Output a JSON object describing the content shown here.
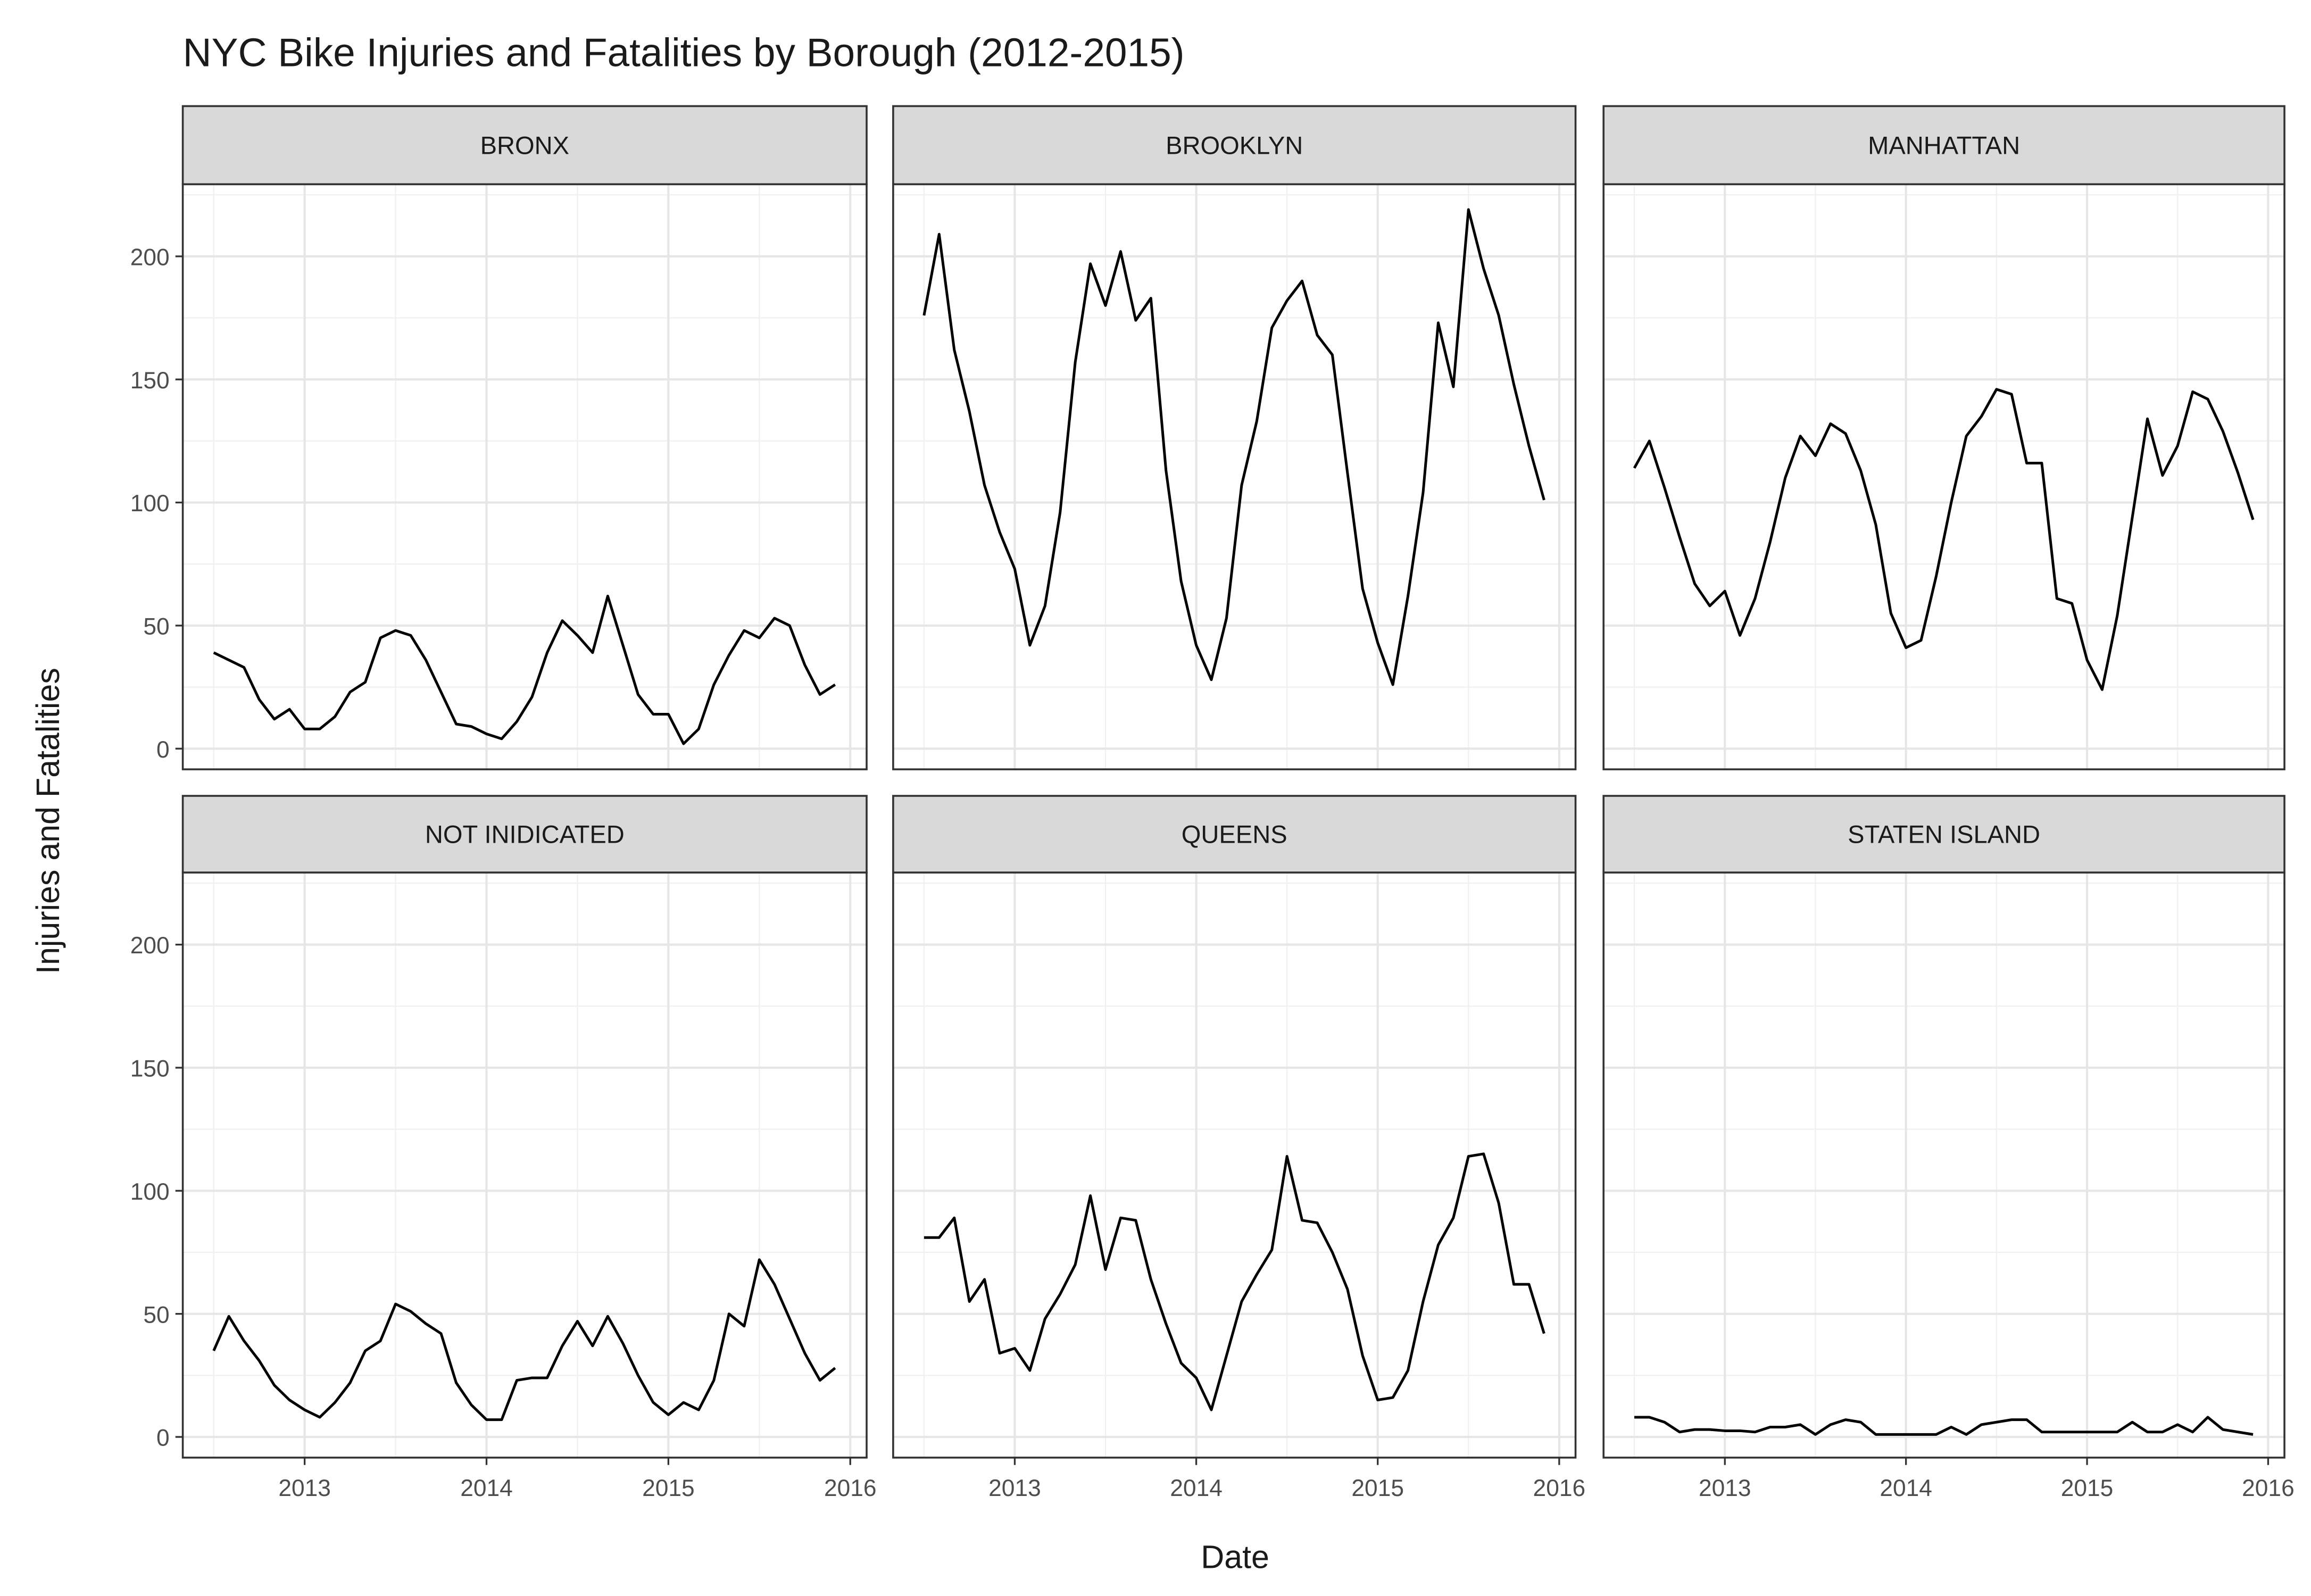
{
  "title": "NYC Bike Injuries and Fatalities by Borough (2012-2015)",
  "x_label": "Date",
  "y_label": "Injuries and Fatalities",
  "chart_data": [
    {
      "type": "line",
      "title": "BRONX",
      "color": "#000000",
      "grid": true,
      "x": [
        "2012-07",
        "2012-08",
        "2012-09",
        "2012-10",
        "2012-11",
        "2012-12",
        "2013-01",
        "2013-02",
        "2013-03",
        "2013-04",
        "2013-05",
        "2013-06",
        "2013-07",
        "2013-08",
        "2013-09",
        "2013-10",
        "2013-11",
        "2013-12",
        "2014-01",
        "2014-02",
        "2014-03",
        "2014-04",
        "2014-05",
        "2014-06",
        "2014-07",
        "2014-08",
        "2014-09",
        "2014-10",
        "2014-11",
        "2014-12",
        "2015-01",
        "2015-02",
        "2015-03",
        "2015-04",
        "2015-05",
        "2015-06",
        "2015-07",
        "2015-08",
        "2015-09",
        "2015-10",
        "2015-11",
        "2015-12"
      ],
      "values": [
        39,
        36,
        33,
        20,
        12,
        16,
        8,
        8,
        13,
        23,
        27,
        45,
        48,
        46,
        36,
        23,
        10,
        9,
        6,
        4,
        11,
        21,
        39,
        52,
        46,
        39,
        62,
        42,
        22,
        14,
        14,
        2,
        8,
        26,
        38,
        48,
        45,
        53,
        50,
        34,
        22,
        26
      ],
      "xlim": [
        2012.33,
        2016.09
      ],
      "xticks": [
        2013,
        2014,
        2015,
        2016
      ],
      "ylim": [
        -8.4,
        229.3
      ],
      "yticks": [
        0,
        50,
        100,
        150,
        200
      ]
    },
    {
      "type": "line",
      "title": "BROOKLYN",
      "color": "#000000",
      "grid": true,
      "x": [
        "2012-07",
        "2012-08",
        "2012-09",
        "2012-10",
        "2012-11",
        "2012-12",
        "2013-01",
        "2013-02",
        "2013-03",
        "2013-04",
        "2013-05",
        "2013-06",
        "2013-07",
        "2013-08",
        "2013-09",
        "2013-10",
        "2013-11",
        "2013-12",
        "2014-01",
        "2014-02",
        "2014-03",
        "2014-04",
        "2014-05",
        "2014-06",
        "2014-07",
        "2014-08",
        "2014-09",
        "2014-10",
        "2014-11",
        "2014-12",
        "2015-01",
        "2015-02",
        "2015-03",
        "2015-04",
        "2015-05",
        "2015-06",
        "2015-07",
        "2015-08",
        "2015-09",
        "2015-10",
        "2015-11",
        "2015-12"
      ],
      "values": [
        176,
        209,
        162,
        137,
        107,
        88,
        73,
        42,
        58,
        96,
        157,
        197,
        180,
        202,
        174,
        183,
        113,
        68,
        42,
        28,
        53,
        107,
        133,
        171,
        182,
        190,
        168,
        160,
        112,
        65,
        43,
        26,
        62,
        104,
        173,
        147,
        219,
        195,
        176,
        148,
        123,
        101
      ],
      "xlim": [
        2012.33,
        2016.09
      ],
      "xticks": [
        2013,
        2014,
        2015,
        2016
      ],
      "ylim": [
        -8.4,
        229.3
      ],
      "yticks": [
        0,
        50,
        100,
        150,
        200
      ]
    },
    {
      "type": "line",
      "title": "MANHATTAN",
      "color": "#000000",
      "grid": true,
      "x": [
        "2012-07",
        "2012-08",
        "2012-09",
        "2012-10",
        "2012-11",
        "2012-12",
        "2013-01",
        "2013-02",
        "2013-03",
        "2013-04",
        "2013-05",
        "2013-06",
        "2013-07",
        "2013-08",
        "2013-09",
        "2013-10",
        "2013-11",
        "2013-12",
        "2014-01",
        "2014-02",
        "2014-03",
        "2014-04",
        "2014-05",
        "2014-06",
        "2014-07",
        "2014-08",
        "2014-09",
        "2014-10",
        "2014-11",
        "2014-12",
        "2015-01",
        "2015-02",
        "2015-03",
        "2015-04",
        "2015-05",
        "2015-06",
        "2015-07",
        "2015-08",
        "2015-09",
        "2015-10",
        "2015-11",
        "2015-12"
      ],
      "values": [
        114,
        125,
        106,
        86,
        67,
        58,
        64,
        46,
        61,
        84,
        110,
        127,
        119,
        132,
        128,
        113,
        91,
        55,
        41,
        44,
        70,
        100,
        127,
        135,
        146,
        144,
        116,
        116,
        61,
        59,
        36,
        24,
        54,
        94,
        134,
        111,
        123,
        145,
        142,
        129,
        112,
        93
      ],
      "xlim": [
        2012.33,
        2016.09
      ],
      "xticks": [
        2013,
        2014,
        2015,
        2016
      ],
      "ylim": [
        -8.4,
        229.3
      ],
      "yticks": [
        0,
        50,
        100,
        150,
        200
      ]
    },
    {
      "type": "line",
      "title": "NOT INIDICATED",
      "color": "#000000",
      "grid": true,
      "x": [
        "2012-07",
        "2012-08",
        "2012-09",
        "2012-10",
        "2012-11",
        "2012-12",
        "2013-01",
        "2013-02",
        "2013-03",
        "2013-04",
        "2013-05",
        "2013-06",
        "2013-07",
        "2013-08",
        "2013-09",
        "2013-10",
        "2013-11",
        "2013-12",
        "2014-01",
        "2014-02",
        "2014-03",
        "2014-04",
        "2014-05",
        "2014-06",
        "2014-07",
        "2014-08",
        "2014-09",
        "2014-10",
        "2014-11",
        "2014-12",
        "2015-01",
        "2015-02",
        "2015-03",
        "2015-04",
        "2015-05",
        "2015-06",
        "2015-07",
        "2015-08",
        "2015-09",
        "2015-10",
        "2015-11",
        "2015-12"
      ],
      "values": [
        35,
        49,
        39,
        31,
        21,
        15,
        11,
        8,
        14,
        22,
        35,
        39,
        54,
        51,
        46,
        42,
        22,
        13,
        7,
        7,
        23,
        24,
        24,
        37,
        47,
        37,
        49,
        38,
        25,
        14,
        9,
        14,
        11,
        23,
        50,
        45,
        72,
        62,
        48,
        34,
        23,
        28
      ],
      "xlim": [
        2012.33,
        2016.09
      ],
      "xticks": [
        2013,
        2014,
        2015,
        2016
      ],
      "ylim": [
        -8.4,
        229.3
      ],
      "yticks": [
        0,
        50,
        100,
        150,
        200
      ]
    },
    {
      "type": "line",
      "title": "QUEENS",
      "color": "#000000",
      "grid": true,
      "x": [
        "2012-07",
        "2012-08",
        "2012-09",
        "2012-10",
        "2012-11",
        "2012-12",
        "2013-01",
        "2013-02",
        "2013-03",
        "2013-04",
        "2013-05",
        "2013-06",
        "2013-07",
        "2013-08",
        "2013-09",
        "2013-10",
        "2013-11",
        "2013-12",
        "2014-01",
        "2014-02",
        "2014-03",
        "2014-04",
        "2014-05",
        "2014-06",
        "2014-07",
        "2014-08",
        "2014-09",
        "2014-10",
        "2014-11",
        "2014-12",
        "2015-01",
        "2015-02",
        "2015-03",
        "2015-04",
        "2015-05",
        "2015-06",
        "2015-07",
        "2015-08",
        "2015-09",
        "2015-10",
        "2015-11",
        "2015-12"
      ],
      "values": [
        81,
        81,
        89,
        55,
        64,
        34,
        36,
        27,
        48,
        58,
        70,
        98,
        68,
        89,
        88,
        64,
        46,
        30,
        24,
        11,
        33,
        55,
        66,
        76,
        114,
        88,
        87,
        75,
        60,
        33,
        15,
        16,
        27,
        55,
        78,
        89,
        114,
        115,
        95,
        62,
        62,
        42
      ],
      "xlim": [
        2012.33,
        2016.09
      ],
      "xticks": [
        2013,
        2014,
        2015,
        2016
      ],
      "ylim": [
        -8.4,
        229.3
      ],
      "yticks": [
        0,
        50,
        100,
        150,
        200
      ]
    },
    {
      "type": "line",
      "title": "STATEN ISLAND",
      "color": "#000000",
      "grid": true,
      "x": [
        "2012-07",
        "2012-08",
        "2012-09",
        "2012-10",
        "2012-11",
        "2012-12",
        "2013-01",
        "2013-02",
        "2013-03",
        "2013-04",
        "2013-05",
        "2013-06",
        "2013-07",
        "2013-08",
        "2013-09",
        "2013-10",
        "2013-11",
        "2013-12",
        "2014-01",
        "2014-02",
        "2014-03",
        "2014-04",
        "2014-05",
        "2014-06",
        "2014-07",
        "2014-08",
        "2014-09",
        "2014-10",
        "2014-11",
        "2014-12",
        "2015-01",
        "2015-02",
        "2015-03",
        "2015-04",
        "2015-05",
        "2015-06",
        "2015-07",
        "2015-08",
        "2015-09",
        "2015-10",
        "2015-11",
        "2015-12"
      ],
      "values": [
        8,
        8,
        6,
        2,
        3,
        3,
        2.5,
        2.5,
        2,
        4,
        4,
        5,
        1,
        5,
        7,
        6,
        1,
        1,
        1,
        1,
        1,
        4,
        1,
        5,
        6,
        7,
        7,
        2,
        2,
        2,
        2,
        2,
        2,
        6,
        2,
        2,
        5,
        2,
        8,
        3,
        2,
        1
      ],
      "xlim": [
        2012.33,
        2016.09
      ],
      "xticks": [
        2013,
        2014,
        2015,
        2016
      ],
      "ylim": [
        -8.4,
        229.3
      ],
      "yticks": [
        0,
        50,
        100,
        150,
        200
      ]
    }
  ]
}
